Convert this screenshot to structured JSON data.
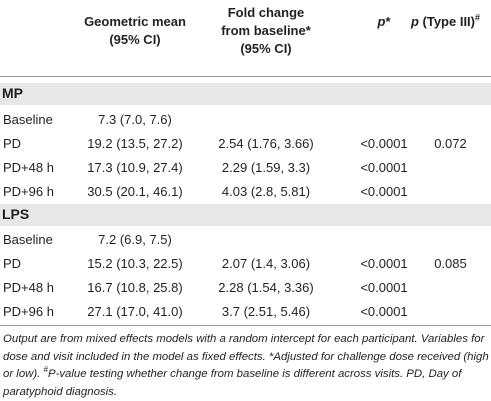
{
  "header": {
    "col1": [
      "Geometric mean",
      "(95% CI)"
    ],
    "col2": [
      "Fold change",
      "from baseline*",
      "(95% CI)"
    ],
    "col3_p": "p",
    "col3_mark": "*",
    "col4_p": "p",
    "col4_rest": " (Type III)",
    "col4_mark": "#"
  },
  "sections": [
    {
      "name": "MP",
      "rows": [
        {
          "label": "Baseline",
          "gm": "7.3 (7.0, 7.6)",
          "fold": "",
          "p": "",
          "ptype": ""
        },
        {
          "label": "PD",
          "gm": "19.2 (13.5, 27.2)",
          "fold": "2.54 (1.76, 3.66)",
          "p": "<0.0001",
          "ptype": "0.072"
        },
        {
          "label": "PD+48 h",
          "gm": "17.3 (10.9, 27.4)",
          "fold": "2.29 (1.59, 3.3)",
          "p": "<0.0001",
          "ptype": ""
        },
        {
          "label": "PD+96 h",
          "gm": "30.5 (20.1, 46.1)",
          "fold": "4.03 (2.8, 5.81)",
          "p": "<0.0001",
          "ptype": ""
        }
      ]
    },
    {
      "name": "LPS",
      "rows": [
        {
          "label": "Baseline",
          "gm": "7.2 (6.9, 7.5)",
          "fold": "",
          "p": "",
          "ptype": ""
        },
        {
          "label": "PD",
          "gm": "15.2 (10.3, 22.5)",
          "fold": "2.07 (1.4, 3.06)",
          "p": "<0.0001",
          "ptype": "0.085"
        },
        {
          "label": "PD+48 h",
          "gm": "16.7 (10.8, 25.8)",
          "fold": "2.28 (1.54, 3.36)",
          "p": "<0.0001",
          "ptype": ""
        },
        {
          "label": "PD+96 h",
          "gm": "27.1 (17.0, 41.0)",
          "fold": "3.7 (2.51, 5.46)",
          "p": "<0.0001",
          "ptype": ""
        }
      ]
    }
  ],
  "footnote": {
    "part1": "Output are from mixed effects models with a random intercept for each participant. Variables for dose and visit included in the model as fixed effects. *Adjusted for challenge dose received (high or low). ",
    "mark": "#",
    "part2": "P-value testing whether change from baseline is different across visits. PD, Day of paratyphoid diagnosis."
  }
}
